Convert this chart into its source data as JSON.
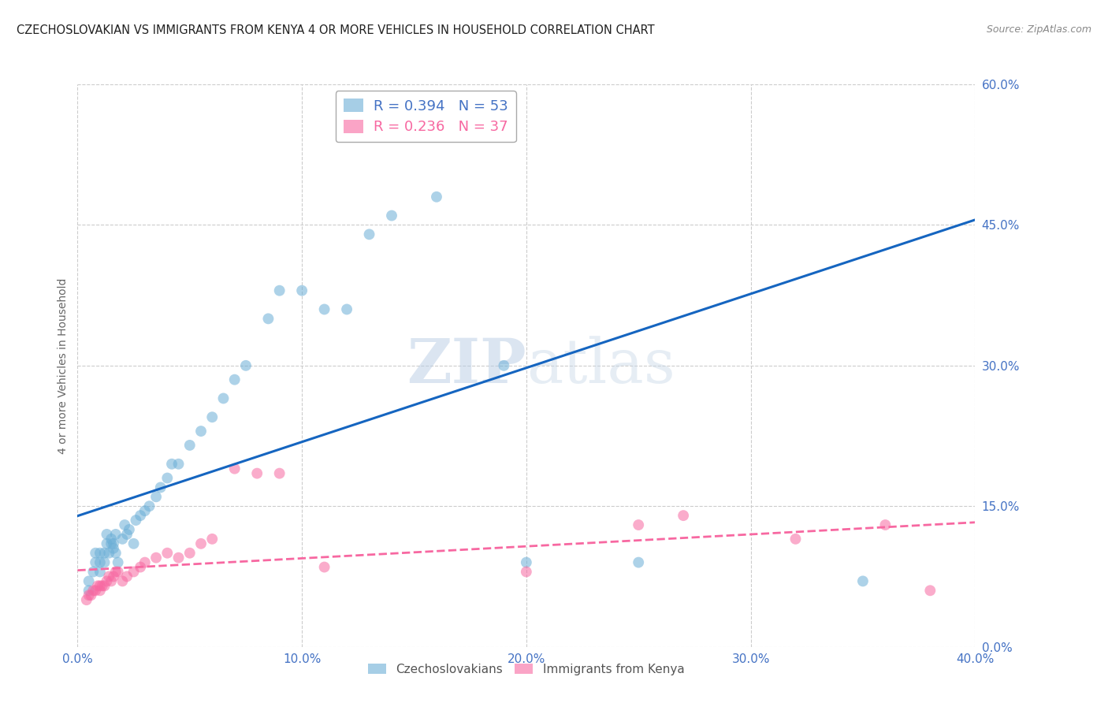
{
  "title": "CZECHOSLOVAKIAN VS IMMIGRANTS FROM KENYA 4 OR MORE VEHICLES IN HOUSEHOLD CORRELATION CHART",
  "source": "Source: ZipAtlas.com",
  "ylabel": "4 or more Vehicles in Household",
  "xlabel_ticks": [
    "0.0%",
    "10.0%",
    "20.0%",
    "30.0%",
    "40.0%"
  ],
  "xlabel_vals": [
    0.0,
    0.1,
    0.2,
    0.3,
    0.4
  ],
  "ylabel_ticks": [
    "0.0%",
    "15.0%",
    "30.0%",
    "45.0%",
    "60.0%"
  ],
  "ylabel_vals": [
    0.0,
    0.15,
    0.3,
    0.45,
    0.6
  ],
  "xlim": [
    0.0,
    0.4
  ],
  "ylim": [
    0.0,
    0.6
  ],
  "czech_color": "#6baed6",
  "kenya_color": "#f768a1",
  "watermark_zip": "ZIP",
  "watermark_atlas": "atlas",
  "czech_scatter_x": [
    0.005,
    0.005,
    0.007,
    0.008,
    0.008,
    0.01,
    0.01,
    0.01,
    0.012,
    0.012,
    0.013,
    0.013,
    0.014,
    0.015,
    0.015,
    0.016,
    0.016,
    0.017,
    0.017,
    0.018,
    0.02,
    0.021,
    0.022,
    0.023,
    0.025,
    0.026,
    0.028,
    0.03,
    0.032,
    0.035,
    0.037,
    0.04,
    0.042,
    0.045,
    0.05,
    0.055,
    0.06,
    0.065,
    0.07,
    0.075,
    0.085,
    0.09,
    0.1,
    0.11,
    0.12,
    0.13,
    0.14,
    0.16,
    0.17,
    0.19,
    0.2,
    0.25,
    0.35
  ],
  "czech_scatter_y": [
    0.06,
    0.07,
    0.08,
    0.09,
    0.1,
    0.08,
    0.09,
    0.1,
    0.09,
    0.1,
    0.11,
    0.12,
    0.1,
    0.11,
    0.115,
    0.105,
    0.11,
    0.12,
    0.1,
    0.09,
    0.115,
    0.13,
    0.12,
    0.125,
    0.11,
    0.135,
    0.14,
    0.145,
    0.15,
    0.16,
    0.17,
    0.18,
    0.195,
    0.195,
    0.215,
    0.23,
    0.245,
    0.265,
    0.285,
    0.3,
    0.35,
    0.38,
    0.38,
    0.36,
    0.36,
    0.44,
    0.46,
    0.48,
    0.565,
    0.3,
    0.09,
    0.09,
    0.07
  ],
  "kenya_scatter_x": [
    0.004,
    0.005,
    0.006,
    0.007,
    0.008,
    0.009,
    0.01,
    0.01,
    0.011,
    0.012,
    0.013,
    0.014,
    0.015,
    0.016,
    0.017,
    0.018,
    0.02,
    0.022,
    0.025,
    0.028,
    0.03,
    0.035,
    0.04,
    0.045,
    0.05,
    0.055,
    0.06,
    0.07,
    0.08,
    0.09,
    0.11,
    0.2,
    0.25,
    0.27,
    0.32,
    0.36,
    0.38
  ],
  "kenya_scatter_y": [
    0.05,
    0.055,
    0.055,
    0.06,
    0.06,
    0.065,
    0.06,
    0.065,
    0.065,
    0.065,
    0.07,
    0.075,
    0.07,
    0.075,
    0.08,
    0.08,
    0.07,
    0.075,
    0.08,
    0.085,
    0.09,
    0.095,
    0.1,
    0.095,
    0.1,
    0.11,
    0.115,
    0.19,
    0.185,
    0.185,
    0.085,
    0.08,
    0.13,
    0.14,
    0.115,
    0.13,
    0.06
  ],
  "background_color": "#ffffff",
  "grid_color": "#cccccc",
  "blue_tick_color": "#4472c4"
}
